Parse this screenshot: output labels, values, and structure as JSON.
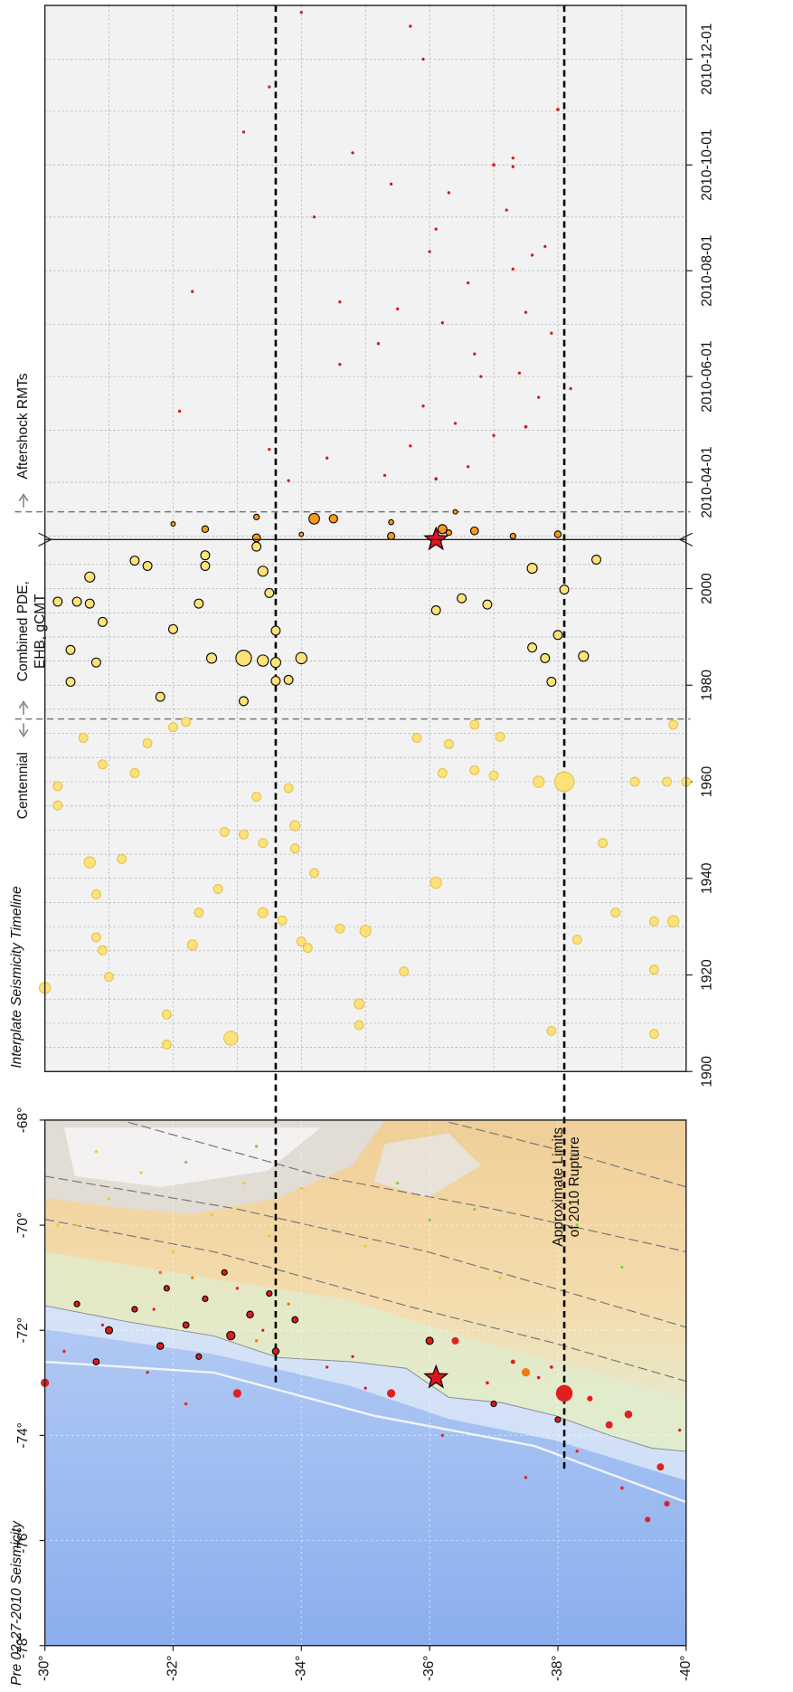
{
  "chart_data": [
    {
      "type": "map",
      "title": "Pre 02-27-2010 Seismicity",
      "xlim": [
        -78,
        -68
      ],
      "ylim": [
        -30,
        -40
      ],
      "xticks": [
        {
          "value": -78,
          "label": "-78°"
        },
        {
          "value": -76,
          "label": "-76°"
        },
        {
          "value": -74,
          "label": "-74°"
        },
        {
          "value": -72,
          "label": "-72°"
        },
        {
          "value": -70,
          "label": "-70°"
        },
        {
          "value": -68,
          "label": "-68°"
        }
      ],
      "yticks": [
        {
          "value": -30,
          "label": "-30°"
        },
        {
          "value": -32,
          "label": "-32°"
        },
        {
          "value": -34,
          "label": "-34°"
        },
        {
          "value": -36,
          "label": "-36°"
        },
        {
          "value": -38,
          "label": "-38°"
        },
        {
          "value": -40,
          "label": "-40°"
        }
      ],
      "rupture_limits": [
        -33.6,
        -38.1
      ],
      "rupture_label": [
        "Approximate Limits",
        "of 2010 Rupture"
      ],
      "mainshock": {
        "x": -72.9,
        "y": -36.1,
        "color": "#e0141e"
      },
      "series": [
        {
          "color": "#e8c93a",
          "stroke": "none",
          "x": [
            -69.5,
            -70.0,
            -69.0,
            -70.5,
            -69.8,
            -70.2,
            -69.3,
            -70.4,
            -70.0,
            -68.6,
            -71.0,
            -69.2
          ],
          "y": [
            -31.0,
            -30.5,
            -31.5,
            -32.0,
            -32.6,
            -33.5,
            -34.0,
            -35.0,
            -30.2,
            -30.8,
            -37.1,
            -33.1
          ],
          "sizes": [
            5.2,
            5.2,
            5.2,
            5.2,
            5.2,
            5.2,
            5.2,
            5.2,
            5.2,
            5.2,
            5.2,
            5.2
          ]
        },
        {
          "color": "#7ed040",
          "stroke": "none",
          "x": [
            -70.0,
            -68.8,
            -69.2,
            -69.7,
            -68.5,
            -70.8,
            -69.9
          ],
          "y": [
            -38.3,
            -32.2,
            -35.5,
            -36.7,
            -33.3,
            -39.0,
            -36.0
          ],
          "sizes": [
            5.2,
            5.2,
            5.2,
            5.2,
            5.2,
            5.2,
            5.2
          ]
        },
        {
          "color": "#f07a10",
          "stroke": "none",
          "x": [
            -72.8,
            -70.9,
            -72.2,
            -71.5,
            -71.0
          ],
          "y": [
            -37.5,
            -31.8,
            -33.3,
            -33.8,
            -32.3
          ],
          "sizes": [
            6.5,
            5.6,
            5.4,
            5.4,
            5.4
          ]
        },
        {
          "color": "#e02020",
          "stroke": "none",
          "x": [
            -73.0,
            -73.2,
            -73.2,
            -73.2,
            -73.8,
            -74.6,
            -75.3,
            -72.2,
            -73.0,
            -72.6,
            -72.9,
            -73.3,
            -73.1,
            -72.7,
            -73.6,
            -74.0,
            -74.3,
            -75.0,
            -72.4,
            -72.8,
            -71.9,
            -72.0,
            -72.5,
            -71.6,
            -73.4,
            -72.7,
            -73.9,
            -74.8,
            -75.6,
            -71.2
          ],
          "y": [
            -30.0,
            -33.0,
            -35.4,
            -38.1,
            -38.8,
            -39.6,
            -39.7,
            -36.4,
            -36.9,
            -37.3,
            -37.7,
            -38.5,
            -35.0,
            -34.4,
            -39.1,
            -36.2,
            -38.3,
            -39.0,
            -30.3,
            -31.6,
            -30.9,
            -33.4,
            -34.8,
            -31.7,
            -32.2,
            -37.9,
            -39.9,
            -37.5,
            -39.4,
            -33.0
          ],
          "sizes": [
            6.5,
            6.5,
            6.5,
            8.0,
            6.3,
            6.3,
            6.0,
            6.3,
            5.6,
            5.8,
            5.6,
            6.0,
            5.0,
            5.0,
            6.4,
            5.0,
            5.0,
            5.6,
            5.0,
            5.0,
            5.0,
            5.0,
            5.0,
            5.0,
            5.4,
            5.6,
            5.0,
            5.0,
            6.0,
            5.0
          ]
        },
        {
          "color": "#d81e1e",
          "stroke": "#000000",
          "x": [
            -72.0,
            -71.6,
            -72.3,
            -71.9,
            -71.4,
            -72.1,
            -71.7,
            -71.3,
            -72.4,
            -71.8,
            -71.2,
            -72.6,
            -70.9,
            -73.7,
            -73.4,
            -72.2,
            -71.5,
            -72.5
          ],
          "y": [
            -31.0,
            -31.4,
            -31.8,
            -32.2,
            -32.5,
            -32.9,
            -33.2,
            -33.5,
            -33.6,
            -33.9,
            -31.9,
            -30.8,
            -32.8,
            -38.0,
            -37.0,
            -36.0,
            -30.5,
            -32.4
          ],
          "sizes": [
            6.3,
            6.0,
            6.2,
            6.1,
            6.0,
            6.5,
            6.2,
            6.0,
            6.2,
            6.1,
            6.0,
            6.1,
            6.0,
            6.0,
            6.0,
            6.3,
            6.0,
            6.0
          ]
        }
      ]
    },
    {
      "type": "timeline",
      "title": "Interplate Seismicity Timeline",
      "xlim": [
        1900,
        2010.16
      ],
      "xticks": [
        1900,
        1920,
        1940,
        1960,
        1980,
        2000
      ],
      "ylim": [
        -30,
        -40
      ],
      "grid_xticks": [
        1905,
        1910,
        1915,
        1920,
        1925,
        1930,
        1935,
        1940,
        1945,
        1950,
        1955,
        1960,
        1965,
        1970,
        1975,
        1980,
        1985,
        1990,
        1995,
        2000,
        2005
      ],
      "grid_yticks": [
        -31,
        -32,
        -33,
        -34,
        -35,
        -36,
        -37,
        -38,
        -39
      ],
      "catalog_break": 1973,
      "annotations": [
        [
          "Centennial"
        ],
        [
          "Combined PDE,",
          "EHB, gCMT"
        ]
      ],
      "series": [
        {
          "color": "#fde27a",
          "stroke": "#e3c24e",
          "x": [
            1917.3,
            1911.8,
            1905.6,
            1906.9,
            1925.1,
            1927.8,
            1919.6,
            1926.2,
            1932.9,
            1932.9,
            1931.3,
            1926.9,
            1925.6,
            1914.0,
            1909.6,
            1929.1,
            1929.6,
            1920.7,
            1908.4,
            1927.3,
            1932.9,
            1921.1,
            1931.1,
            1931.1,
            1907.8,
            1943.3,
            1944.0,
            1936.7,
            1937.8,
            1941.1,
            1939.1,
            1947.3,
            1949.6,
            1949.1,
            1947.3,
            1950.9,
            1946.2,
            1956.9,
            1958.7,
            1955.1,
            1959.1,
            1963.6,
            1961.8,
            1960.0,
            1960.0,
            1960.0,
            1960.0,
            1960.0,
            1961.8,
            1962.4,
            1961.3,
            1968.0,
            1971.3,
            1969.1,
            1972.4,
            1971.8,
            1969.1,
            1971.8,
            1969.3,
            1967.8
          ],
          "y": [
            -30.0,
            -31.9,
            -31.9,
            -32.9,
            -30.9,
            -30.8,
            -31.0,
            -32.3,
            -32.4,
            -33.4,
            -33.7,
            -34.0,
            -34.1,
            -34.9,
            -34.9,
            -35.0,
            -34.6,
            -35.6,
            -37.9,
            -38.3,
            -38.9,
            -39.5,
            -39.5,
            -39.8,
            -39.5,
            -30.7,
            -31.2,
            -30.8,
            -32.7,
            -34.2,
            -36.1,
            -38.7,
            -32.8,
            -33.1,
            -33.4,
            -33.9,
            -33.9,
            -33.3,
            -33.8,
            -30.2,
            -30.2,
            -30.9,
            -31.4,
            -38.1,
            -37.7,
            -39.2,
            -39.7,
            -40.0,
            -36.2,
            -36.7,
            -37.0,
            -31.6,
            -32.0,
            -30.6,
            -32.2,
            -39.8,
            -35.8,
            -36.7,
            -37.1,
            -36.3
          ],
          "sizes": [
            7.0,
            6.6,
            6.6,
            7.5,
            6.6,
            6.6,
            6.6,
            6.8,
            6.6,
            6.8,
            6.6,
            6.6,
            6.6,
            6.8,
            6.6,
            7.0,
            6.6,
            6.6,
            6.6,
            6.6,
            6.6,
            6.6,
            6.6,
            7.0,
            6.6,
            7.0,
            6.6,
            6.6,
            6.6,
            6.6,
            7.0,
            6.6,
            6.6,
            6.6,
            6.6,
            6.8,
            6.6,
            6.6,
            6.6,
            6.6,
            6.6,
            6.6,
            6.6,
            8.5,
            7.0,
            6.6,
            6.6,
            6.6,
            6.6,
            6.6,
            6.6,
            6.6,
            6.6,
            6.6,
            6.6,
            6.6,
            6.6,
            6.6,
            6.6,
            6.6
          ]
        },
        {
          "color": "#fde27a",
          "stroke": "#000000",
          "x": [
            1985.6,
            1985.6,
            1985.1,
            1984.7,
            1985.6,
            1981.1,
            1991.3,
            1999.1,
            2003.6,
            2008.7,
            2006.9,
            2004.7,
            1996.9,
            2004.7,
            2005.8,
            2002.4,
            1997.3,
            1997.3,
            1996.9,
            1993.1,
            1984.7,
            1987.3,
            1980.7,
            1991.6,
            1977.6,
            1976.7,
            1980.9,
            1995.5,
            1996.7,
            1987.8,
            1985.6,
            1986.0,
            1990.4,
            1980.7,
            1999.8,
            2004.2,
            2006.0,
            1998.0
          ],
          "y": [
            -33.1,
            -32.6,
            -33.4,
            -33.6,
            -34.0,
            -33.8,
            -33.6,
            -33.5,
            -33.4,
            -33.3,
            -32.5,
            -32.5,
            -32.4,
            -31.6,
            -31.4,
            -30.7,
            -30.5,
            -30.2,
            -30.7,
            -30.9,
            -30.8,
            -30.4,
            -30.4,
            -32.0,
            -31.8,
            -33.1,
            -33.6,
            -36.1,
            -36.9,
            -37.6,
            -37.8,
            -38.4,
            -38.0,
            -37.9,
            -38.1,
            -37.6,
            -38.6,
            -36.5
          ],
          "sizes": [
            7.8,
            6.8,
            7.0,
            6.8,
            7.0,
            6.6,
            6.6,
            6.6,
            6.8,
            6.6,
            6.6,
            6.6,
            6.6,
            6.6,
            6.6,
            6.8,
            6.6,
            6.6,
            6.6,
            6.6,
            6.6,
            6.6,
            6.6,
            6.6,
            6.6,
            6.6,
            6.6,
            6.6,
            6.6,
            6.6,
            6.6,
            6.8,
            6.6,
            6.6,
            6.6,
            6.8,
            6.6,
            6.6
          ]
        }
      ]
    },
    {
      "type": "timeline",
      "xlim": [
        "2010-02-27",
        "2011-01-01"
      ],
      "xticks": [
        "2010-04-01",
        "2010-06-01",
        "2010-08-01",
        "2010-10-01",
        "2010-12-01"
      ],
      "ylim": [
        -30,
        -40
      ],
      "grid_xticks": [
        "2010-03-01",
        "2010-04-01",
        "2010-05-01",
        "2010-06-01",
        "2010-07-01",
        "2010-08-01",
        "2010-09-01",
        "2010-10-01",
        "2010-11-01",
        "2010-12-01"
      ],
      "grid_yticks": [
        -31,
        -32,
        -33,
        -34,
        -35,
        -36,
        -37,
        -38,
        -39
      ],
      "catalog_break": "2010-03-15",
      "annotations": [
        [
          "Aftershock RMTs"
        ]
      ],
      "mainshock": {
        "x": "2010-02-27",
        "y": -36.1,
        "color": "#e0141e"
      },
      "series": [
        {
          "color": "#cc2020",
          "stroke": "none",
          "x": [
            "2010-04-02",
            "2010-04-05",
            "2010-04-03",
            "2010-04-10",
            "2010-04-15",
            "2010-04-20",
            "2010-04-22",
            "2010-04-28",
            "2010-05-03",
            "2010-05-05",
            "2010-05-12",
            "2010-05-15",
            "2010-05-20",
            "2010-05-25",
            "2010-06-01",
            "2010-06-03",
            "2010-06-08",
            "2010-06-14",
            "2010-06-20",
            "2010-06-26",
            "2010-07-02",
            "2010-07-08",
            "2010-07-10",
            "2010-07-14",
            "2010-07-20",
            "2010-07-25",
            "2010-08-02",
            "2010-08-10",
            "2010-08-12",
            "2010-08-15",
            "2010-08-25",
            "2010-09-01",
            "2010-09-05",
            "2010-09-15",
            "2010-09-20",
            "2010-09-30",
            "2010-10-01",
            "2010-10-05",
            "2010-10-08",
            "2010-10-20",
            "2010-11-02",
            "2010-11-15",
            "2010-12-01",
            "2010-12-20",
            "2010-12-28"
          ],
          "y": [
            -33.8,
            -35.3,
            -36.1,
            -36.6,
            -34.4,
            -33.5,
            -35.7,
            -37.0,
            -37.5,
            -36.4,
            -32.1,
            -35.9,
            -37.7,
            -38.2,
            -36.8,
            -37.4,
            -34.6,
            -36.7,
            -35.2,
            -37.9,
            -36.2,
            -37.5,
            -35.5,
            -34.6,
            -32.3,
            -36.6,
            -37.3,
            -37.6,
            -36.0,
            -37.8,
            -36.1,
            -34.2,
            -37.2,
            -36.3,
            -35.4,
            -37.3,
            -37.0,
            -37.3,
            -34.8,
            -33.1,
            -38.0,
            -33.5,
            -35.9,
            -35.7,
            -34.0
          ],
          "sizes": [
            5.0,
            5.4,
            5.6,
            5.0,
            5.0,
            5.0,
            5.0,
            5.0,
            5.6,
            5.0,
            5.0,
            5.0,
            5.4,
            5.0,
            5.0,
            5.4,
            5.0,
            5.0,
            5.0,
            5.0,
            5.0,
            5.0,
            5.4,
            5.0,
            5.0,
            5.0,
            5.4,
            5.0,
            5.0,
            5.0,
            5.0,
            5.0,
            5.0,
            5.0,
            5.0,
            5.4,
            5.6,
            5.0,
            5.0,
            5.0,
            5.6,
            5.0,
            5.0,
            5.0,
            5.0
          ]
        },
        {
          "color": "#f59a1c",
          "stroke": "#000000",
          "x": [
            "2010-02-28",
            "2010-03-02",
            "2010-03-05",
            "2010-03-11",
            "2010-03-11",
            "2010-03-01",
            "2010-03-03",
            "2010-03-05",
            "2010-03-04",
            "2010-03-01",
            "2010-03-02",
            "2010-03-09",
            "2010-03-12",
            "2010-03-08",
            "2010-03-15"
          ],
          "y": [
            -33.3,
            -34.0,
            -32.5,
            -34.2,
            -34.5,
            -35.4,
            -36.3,
            -36.2,
            -36.7,
            -37.3,
            -38.0,
            -35.4,
            -33.3,
            -32.0,
            -36.4
          ],
          "sizes": [
            6.4,
            5.8,
            6.2,
            6.9,
            6.5,
            6.3,
            6.0,
            6.6,
            6.4,
            6.0,
            6.2,
            5.9,
            6.0,
            5.8,
            5.8
          ]
        }
      ]
    }
  ]
}
